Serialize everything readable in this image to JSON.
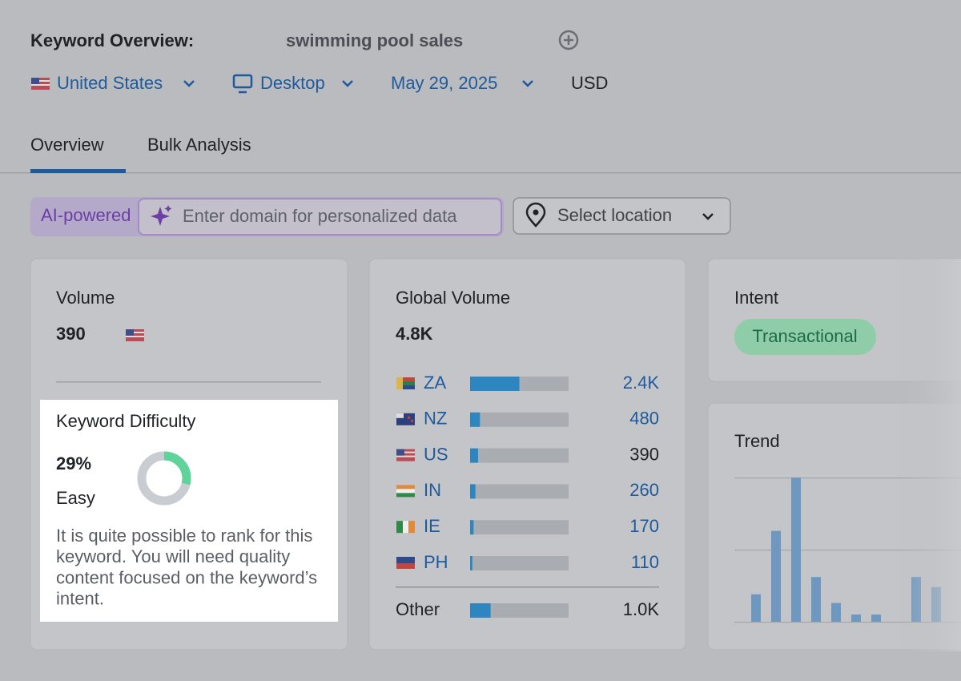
{
  "header": {
    "title": "Keyword Overview:",
    "keyword": "swimming pool sales",
    "filters": {
      "country": "United States",
      "device": "Desktop",
      "date": "May 29, 2025",
      "currency": "USD"
    }
  },
  "tabs": [
    "Overview",
    "Bulk Analysis"
  ],
  "search": {
    "badge": "AI-powered",
    "placeholder": "Enter domain for personalized data",
    "location": "Select location"
  },
  "volume": {
    "title": "Volume",
    "value": "390"
  },
  "keyword_difficulty": {
    "title": "Keyword Difficulty",
    "value": 29,
    "label": "29%",
    "level": "Easy",
    "description": [
      "It is quite possible to rank for this",
      "keyword. You will need quality",
      "content focused on the keyword’s",
      "intent."
    ]
  },
  "global_volume": {
    "title": "Global Volume",
    "value": 4800,
    "label": "4.8K",
    "countries": [
      {
        "code": "ZA",
        "value": 2400,
        "label": "2.4K"
      },
      {
        "code": "NZ",
        "value": 480,
        "label": "480"
      },
      {
        "code": "US",
        "value": 390,
        "label": "390"
      },
      {
        "code": "IN",
        "value": 260,
        "label": "260"
      },
      {
        "code": "IE",
        "value": 170,
        "label": "170"
      },
      {
        "code": "PH",
        "value": 110,
        "label": "110"
      }
    ],
    "other": {
      "name": "Other",
      "value": 1000,
      "label": "1.0K"
    }
  },
  "intent": {
    "title": "Intent",
    "value": "Transactional"
  },
  "trend": {
    "title": "Trend",
    "values": [
      19,
      63,
      100,
      31,
      13,
      5,
      5,
      0,
      31,
      24
    ]
  }
}
